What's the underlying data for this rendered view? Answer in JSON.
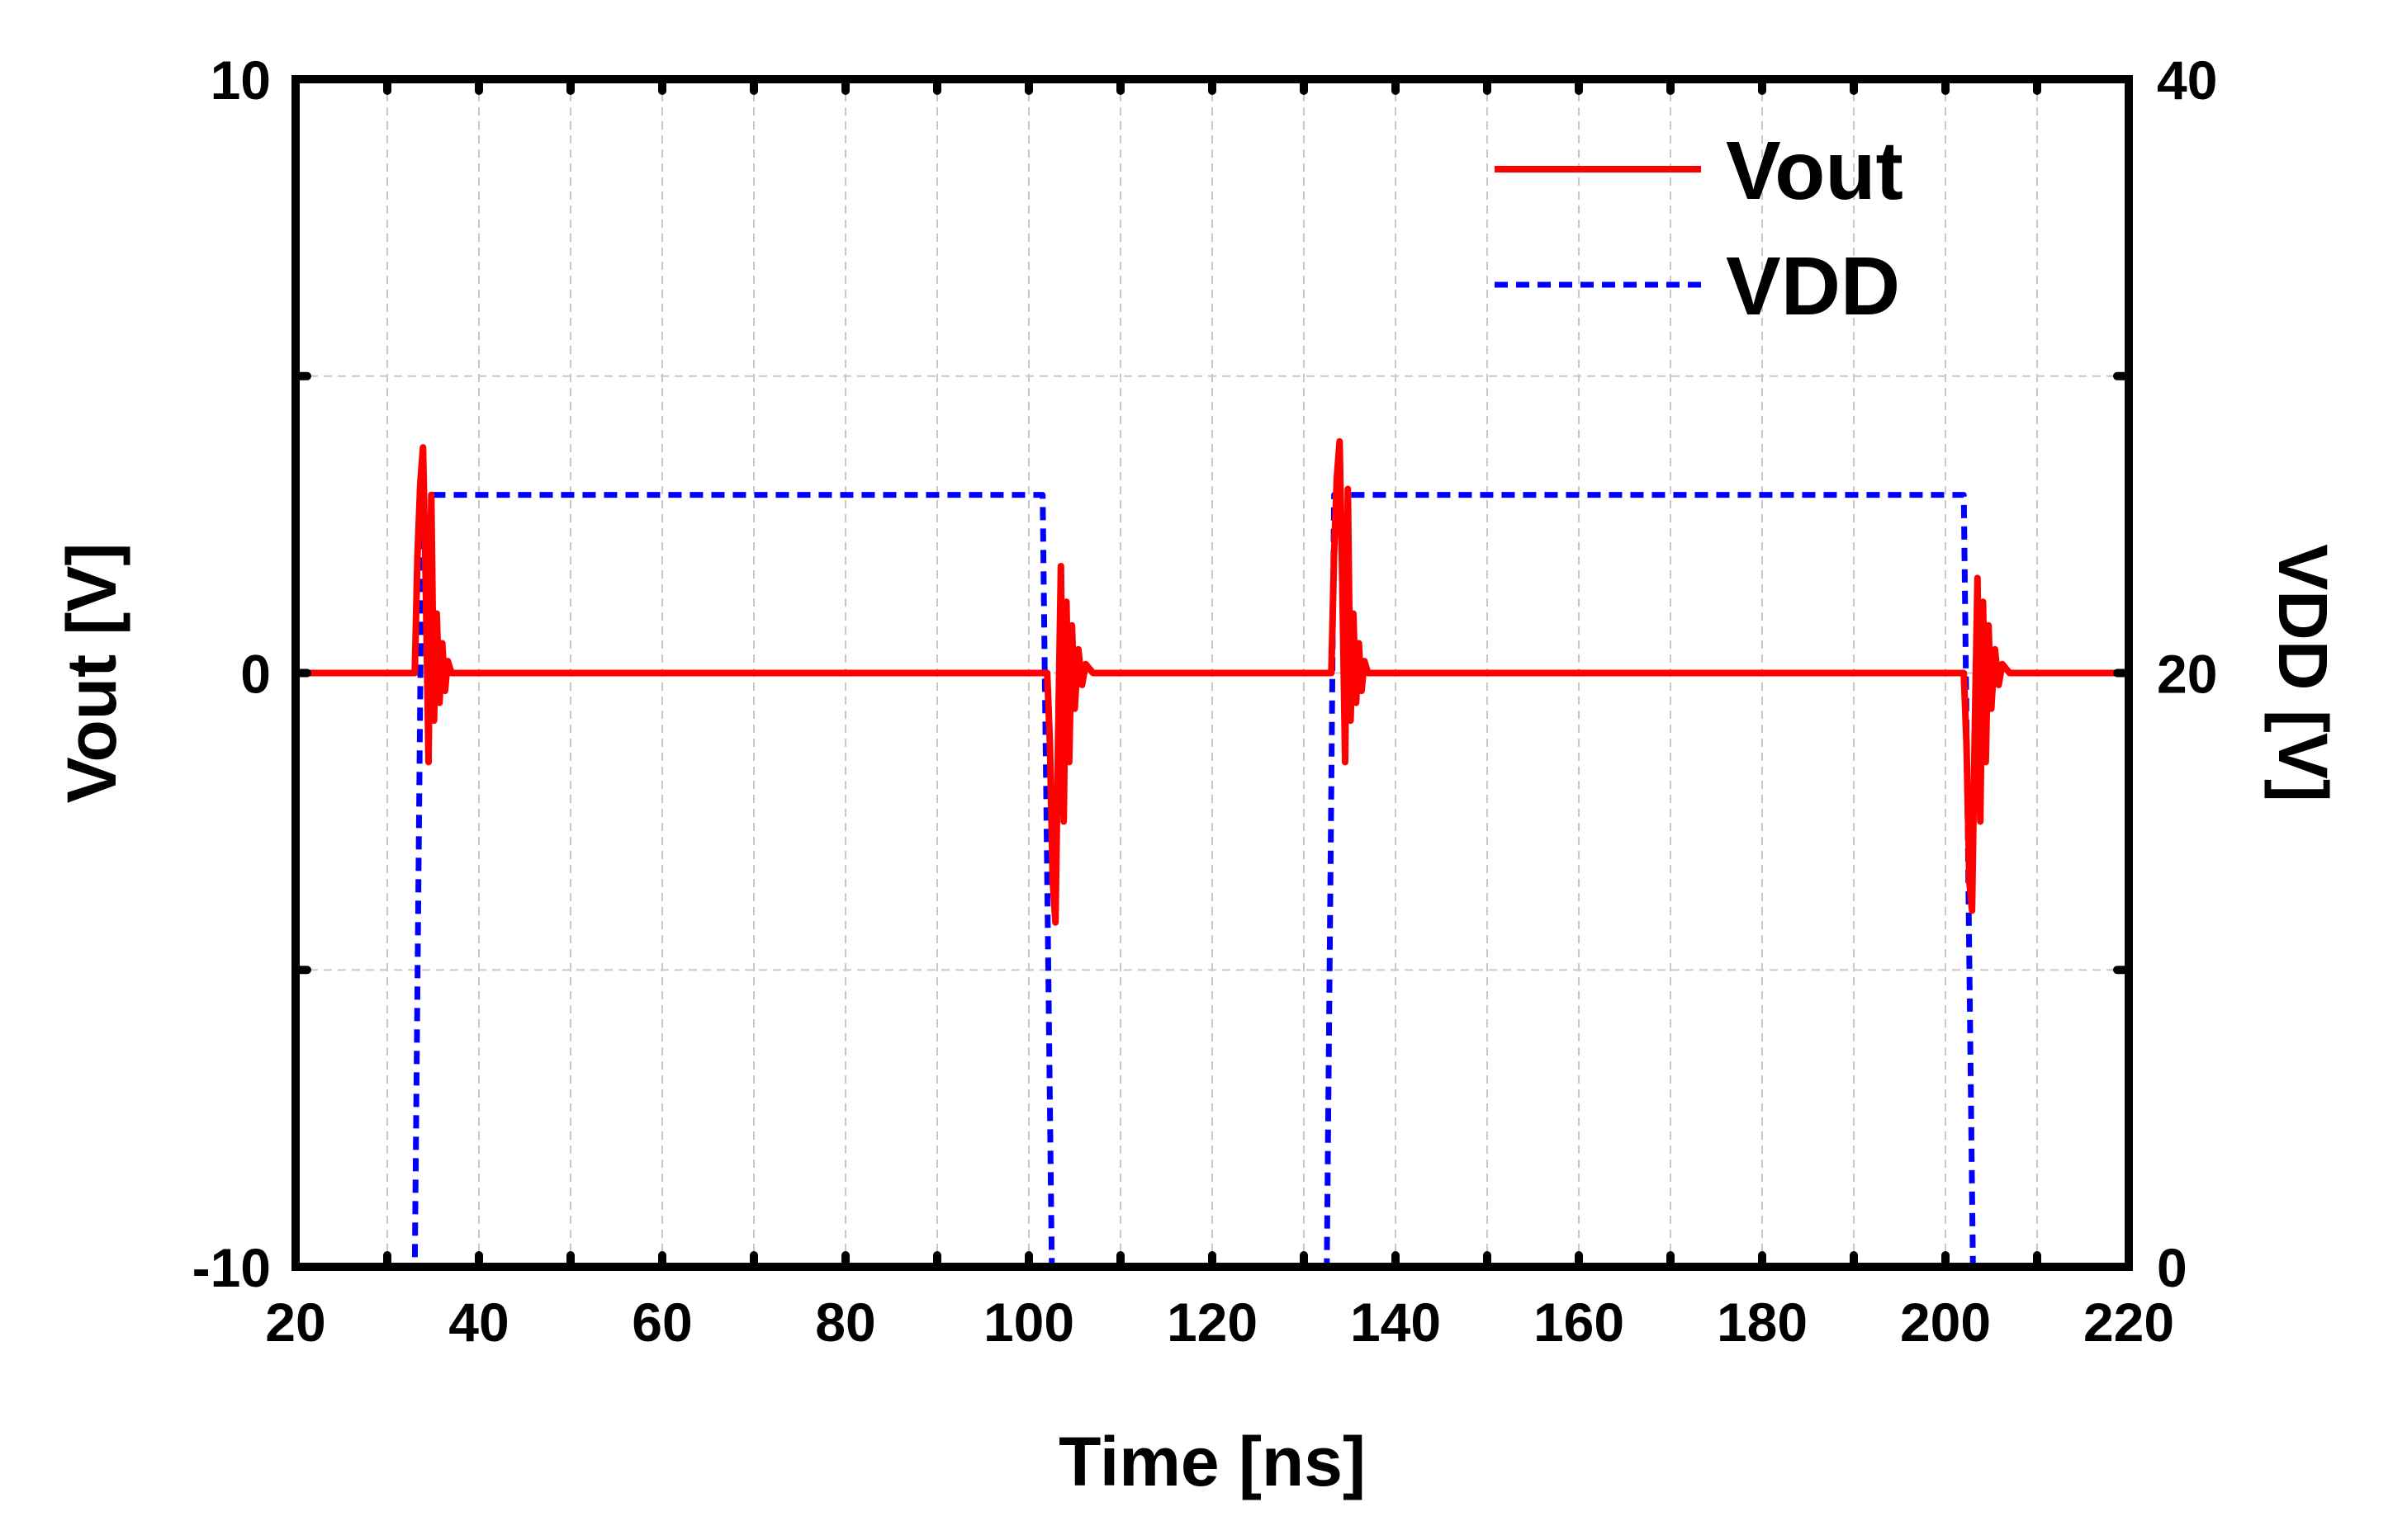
{
  "chart_data": {
    "type": "line",
    "xlabel": "Time [ns]",
    "ylabel_left": "Vout [V]",
    "ylabel_right": "VDD [V]",
    "xlim": [
      20,
      220
    ],
    "ylim_left": [
      -10,
      10
    ],
    "ylim_right": [
      0,
      40
    ],
    "x_ticks": [
      20,
      40,
      60,
      80,
      100,
      120,
      140,
      160,
      180,
      200,
      220
    ],
    "y_left_ticks": [
      -10,
      0,
      10
    ],
    "y_right_ticks": [
      0,
      20,
      40
    ],
    "grid": true,
    "legend_position": "top-right",
    "series": [
      {
        "name": "Vout",
        "axis": "left",
        "color": "#ff0000",
        "style": "solid",
        "points": [
          [
            20,
            0
          ],
          [
            33.0,
            0
          ],
          [
            33.3,
            2.0
          ],
          [
            33.6,
            3.2
          ],
          [
            33.9,
            3.8
          ],
          [
            34.2,
            1.5
          ],
          [
            34.5,
            -1.5
          ],
          [
            34.8,
            3.0
          ],
          [
            35.1,
            -0.8
          ],
          [
            35.4,
            1.0
          ],
          [
            35.7,
            -0.5
          ],
          [
            36.0,
            0.5
          ],
          [
            36.3,
            -0.3
          ],
          [
            36.6,
            0.2
          ],
          [
            37.0,
            0
          ],
          [
            102.0,
            0
          ],
          [
            102.3,
            -1.2
          ],
          [
            102.6,
            -3.5
          ],
          [
            102.9,
            -4.2
          ],
          [
            103.2,
            -1.0
          ],
          [
            103.5,
            1.8
          ],
          [
            103.8,
            -2.5
          ],
          [
            104.1,
            1.2
          ],
          [
            104.4,
            -1.5
          ],
          [
            104.7,
            0.8
          ],
          [
            105.0,
            -0.6
          ],
          [
            105.4,
            0.4
          ],
          [
            105.8,
            -0.2
          ],
          [
            106.2,
            0.15
          ],
          [
            107.0,
            0
          ],
          [
            133.0,
            0
          ],
          [
            133.3,
            2.0
          ],
          [
            133.6,
            3.3
          ],
          [
            133.9,
            3.9
          ],
          [
            134.2,
            1.5
          ],
          [
            134.5,
            -1.5
          ],
          [
            134.8,
            3.1
          ],
          [
            135.1,
            -0.8
          ],
          [
            135.4,
            1.0
          ],
          [
            135.7,
            -0.5
          ],
          [
            136.0,
            0.5
          ],
          [
            136.3,
            -0.3
          ],
          [
            136.6,
            0.2
          ],
          [
            137.0,
            0
          ],
          [
            202.0,
            0
          ],
          [
            202.3,
            -1.2
          ],
          [
            202.6,
            -3.5
          ],
          [
            202.9,
            -4.0
          ],
          [
            203.2,
            -1.0
          ],
          [
            203.5,
            1.6
          ],
          [
            203.8,
            -2.5
          ],
          [
            204.1,
            1.2
          ],
          [
            204.4,
            -1.5
          ],
          [
            204.7,
            0.8
          ],
          [
            205.0,
            -0.6
          ],
          [
            205.4,
            0.4
          ],
          [
            205.8,
            -0.2
          ],
          [
            206.2,
            0.15
          ],
          [
            207.0,
            0
          ],
          [
            220,
            0
          ]
        ]
      },
      {
        "name": "VDD",
        "axis": "right",
        "color": "#0000ff",
        "style": "dashed",
        "points": [
          [
            20,
            0
          ],
          [
            33.0,
            0
          ],
          [
            33.8,
            26
          ],
          [
            101.5,
            26
          ],
          [
            102.5,
            0
          ],
          [
            132.5,
            0
          ],
          [
            133.3,
            26
          ],
          [
            202.0,
            26
          ],
          [
            203.0,
            0
          ],
          [
            220,
            0
          ]
        ]
      }
    ]
  }
}
